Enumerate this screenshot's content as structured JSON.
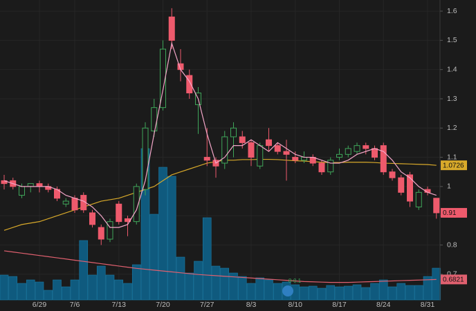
{
  "chart_data": {
    "type": "candlestick",
    "categories": [
      null,
      null,
      null,
      null,
      "6/29",
      null,
      null,
      null,
      "7/6",
      null,
      null,
      null,
      null,
      "7/13",
      null,
      null,
      null,
      null,
      "7/20",
      null,
      null,
      null,
      null,
      "7/27",
      null,
      null,
      null,
      null,
      "8/3",
      null,
      null,
      null,
      null,
      "8/10",
      null,
      null,
      null,
      null,
      "8/17",
      null,
      null,
      null,
      null,
      "8/24",
      null,
      null,
      null,
      null,
      "8/31",
      null
    ],
    "open": [
      1.02,
      1.02,
      0.97,
      1.0,
      1.01,
      1.0,
      0.99,
      0.94,
      0.96,
      0.97,
      0.91,
      0.86,
      0.82,
      0.94,
      0.89,
      0.88,
      0.99,
      1.19,
      1.27,
      1.58,
      1.42,
      1.38,
      1.28,
      1.1,
      1.09,
      1.08,
      1.17,
      1.17,
      1.15,
      1.07,
      1.16,
      1.14,
      1.12,
      1.1,
      1.09,
      1.1,
      1.08,
      1.05,
      1.1,
      1.11,
      1.12,
      1.14,
      1.13,
      1.14,
      1.05,
      1.03,
      1.04,
      0.93,
      0.99,
      0.96
    ],
    "high": [
      1.04,
      1.03,
      1.01,
      1.01,
      1.02,
      1.01,
      1.0,
      0.96,
      0.97,
      0.98,
      0.92,
      0.87,
      0.89,
      0.95,
      0.9,
      1.01,
      1.22,
      1.3,
      1.5,
      1.61,
      1.47,
      1.4,
      1.34,
      1.2,
      1.1,
      1.19,
      1.22,
      1.19,
      1.16,
      1.15,
      1.2,
      1.15,
      1.16,
      1.12,
      1.12,
      1.11,
      1.09,
      1.1,
      1.13,
      1.14,
      1.15,
      1.15,
      1.14,
      1.15,
      1.06,
      1.04,
      1.05,
      0.99,
      1.0,
      0.96
    ],
    "low": [
      0.99,
      0.99,
      0.96,
      0.98,
      0.98,
      0.98,
      0.95,
      0.93,
      0.91,
      0.91,
      0.86,
      0.8,
      0.81,
      0.87,
      0.83,
      0.87,
      0.97,
      1.17,
      1.26,
      1.47,
      1.36,
      1.3,
      1.18,
      1.07,
      1.03,
      1.06,
      1.1,
      1.13,
      1.07,
      1.06,
      1.12,
      1.11,
      1.02,
      1.08,
      1.08,
      1.07,
      1.04,
      1.04,
      1.09,
      1.1,
      1.11,
      1.11,
      1.09,
      1.04,
      1.02,
      0.97,
      0.93,
      0.92,
      0.97,
      0.89
    ],
    "close": [
      1.01,
      1.0,
      1.0,
      1.01,
      1.0,
      0.99,
      0.96,
      0.95,
      0.92,
      0.92,
      0.87,
      0.82,
      0.88,
      0.88,
      0.88,
      1.0,
      1.2,
      1.27,
      1.47,
      1.5,
      1.4,
      1.32,
      1.32,
      1.09,
      1.07,
      1.17,
      1.2,
      1.15,
      1.1,
      1.14,
      1.14,
      1.12,
      1.11,
      1.09,
      1.1,
      1.08,
      1.05,
      1.09,
      1.11,
      1.13,
      1.14,
      1.13,
      1.1,
      1.05,
      1.03,
      0.98,
      0.95,
      0.98,
      0.98,
      0.91
    ],
    "volume": [
      36,
      34,
      24,
      29,
      26,
      14,
      29,
      19,
      29,
      86,
      36,
      49,
      36,
      29,
      24,
      51,
      219,
      124,
      192,
      179,
      62,
      39,
      56,
      119,
      49,
      46,
      39,
      34,
      24,
      32,
      29,
      24,
      26,
      22,
      19,
      20,
      17,
      21,
      19,
      20,
      22,
      18,
      24,
      29,
      19,
      24,
      21,
      21,
      34,
      46
    ],
    "ma_short": [
      1.02,
      1.01,
      1.0,
      1.0,
      1.0,
      1.0,
      0.99,
      0.97,
      0.96,
      0.95,
      0.93,
      0.9,
      0.86,
      0.86,
      0.87,
      0.92,
      1.02,
      1.18,
      1.33,
      1.49,
      1.4,
      1.36,
      1.3,
      1.18,
      1.08,
      1.1,
      1.14,
      1.14,
      1.16,
      1.14,
      1.12,
      1.15,
      1.13,
      1.11,
      1.1,
      1.1,
      1.09,
      1.08,
      1.08,
      1.09,
      1.11,
      1.12,
      1.13,
      1.12,
      1.09,
      1.05,
      1.03,
      1.0,
      0.98,
      0.97
    ],
    "ma_long": [
      0.85,
      0.86,
      0.87,
      0.875,
      0.88,
      0.89,
      0.9,
      0.91,
      0.92,
      0.93,
      0.94,
      0.95,
      0.955,
      0.96,
      0.97,
      0.98,
      0.99,
      1.0,
      1.02,
      1.04,
      1.05,
      1.06,
      1.07,
      1.08,
      1.085,
      1.09,
      1.09,
      1.092,
      1.092,
      1.093,
      1.093,
      1.092,
      1.09,
      1.088,
      1.087,
      1.085,
      1.083,
      1.082,
      1.082,
      1.083,
      1.083,
      1.083,
      1.082,
      1.08,
      1.079,
      1.078,
      1.077,
      1.076,
      1.075,
      1.0726
    ],
    "ma_200": [
      0.78,
      0.776,
      0.772,
      0.768,
      0.764,
      0.76,
      0.756,
      0.752,
      0.748,
      0.744,
      0.74,
      0.736,
      0.732,
      0.728,
      0.724,
      0.72,
      0.717,
      0.714,
      0.711,
      0.708,
      0.705,
      0.702,
      0.699,
      0.697,
      0.695,
      0.693,
      0.691,
      0.689,
      0.687,
      0.685,
      0.683,
      0.681,
      0.679,
      0.677,
      0.675,
      0.674,
      0.673,
      0.672,
      0.672,
      0.672,
      0.673,
      0.674,
      0.675,
      0.676,
      0.677,
      0.678,
      0.679,
      0.68,
      0.681,
      0.6821
    ],
    "colors": {
      "up": "#3fa65a",
      "down": "#ee5a6c",
      "volume": "#0f5a7e",
      "ma_short": "#f3a6c8",
      "ma_long": "#d8a92a",
      "ma_200": "#e0606f"
    },
    "ylim": [
      0.612,
      1.638
    ],
    "yticks": [
      0.7,
      0.8,
      0.9,
      1,
      1.1,
      1.2,
      1.3,
      1.4,
      1.5,
      1.6
    ],
    "volume_lim": [
      0,
      230
    ],
    "annotation": "8-0.1",
    "grid": true
  }
}
